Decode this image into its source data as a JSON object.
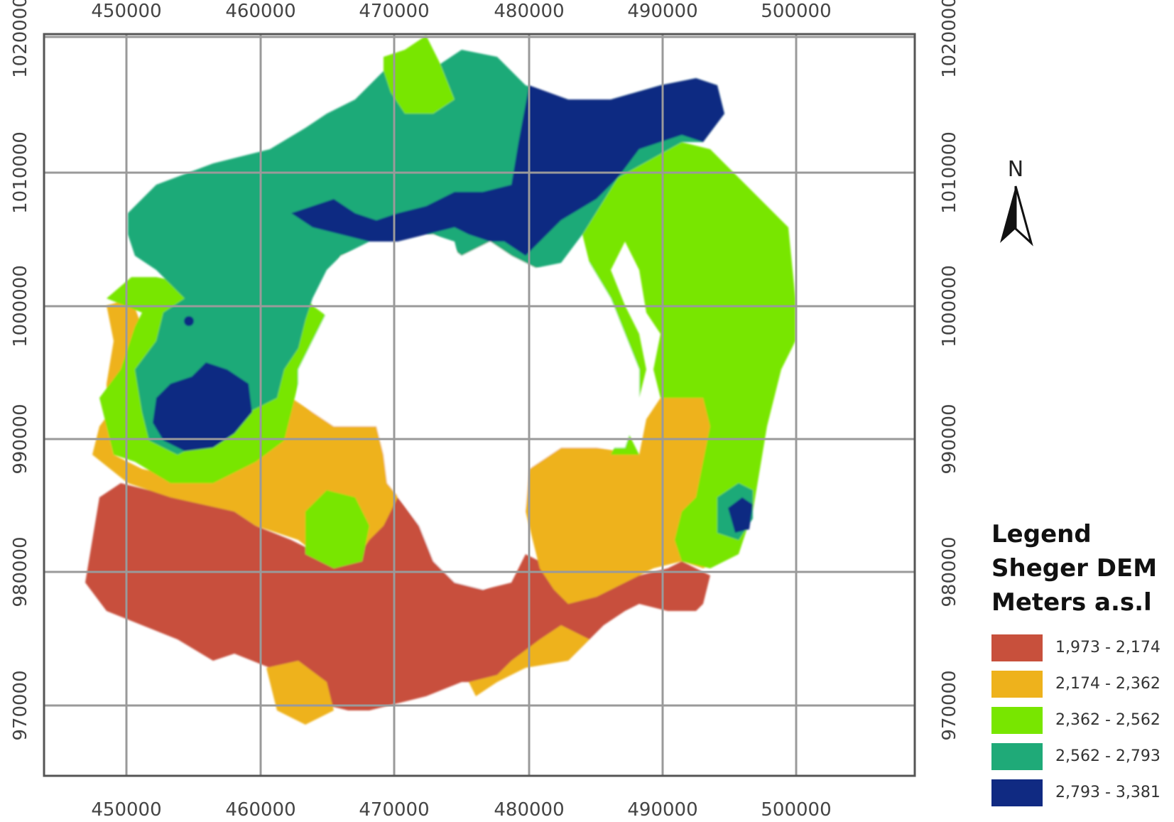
{
  "axes": {
    "x_ticks": [
      "450000",
      "460000",
      "470000",
      "480000",
      "490000",
      "500000"
    ],
    "y_ticks": [
      "1020000",
      "1010000",
      "1000000",
      "990000",
      "980000",
      "970000"
    ]
  },
  "north_arrow": {
    "label": "N",
    "icon": "north-arrow-icon"
  },
  "legend": {
    "title": "Legend",
    "subtitle": "Sheger DEM",
    "units": "Meters a.s.l",
    "classes": [
      {
        "label": "1,973 - 2,174",
        "color": "#c8503c"
      },
      {
        "label": "2,174 - 2,362",
        "color": "#eeb21c"
      },
      {
        "label": "2,362 - 2,562",
        "color": "#78e600"
      },
      {
        "label": "2,562 - 2,793",
        "color": "#1faa78"
      },
      {
        "label": "2,793 - 3,381",
        "color": "#102a82"
      }
    ]
  }
}
